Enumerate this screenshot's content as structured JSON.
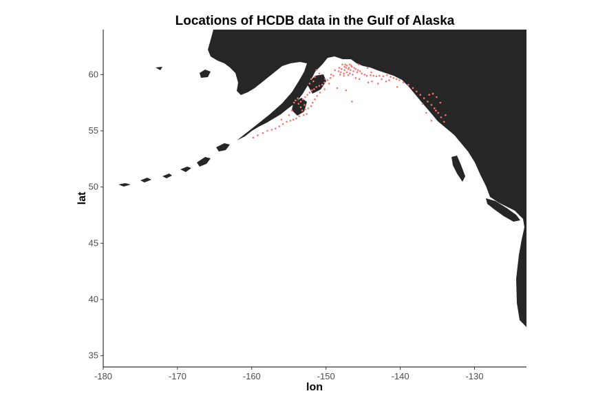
{
  "chart_data": {
    "type": "scatter",
    "title": "Locations of HCDB data in the Gulf of Alaska",
    "xlabel": "lon",
    "ylabel": "lat",
    "xlim": [
      -180,
      -123
    ],
    "ylim": [
      34,
      64
    ],
    "x_ticks": [
      -180,
      -170,
      -160,
      -150,
      -140,
      -130
    ],
    "y_ticks": [
      35,
      40,
      45,
      50,
      55,
      60
    ],
    "x_tick_labels": [
      "-180",
      "-170",
      "-160",
      "-150",
      "-140",
      "-130"
    ],
    "y_tick_labels": [
      "35",
      "40",
      "45",
      "50",
      "55",
      "60"
    ],
    "grid": false,
    "point_color": "#f8766d",
    "land_color": "#262626",
    "points": [
      [
        -147.8,
        60.9
      ],
      [
        -147.5,
        60.7
      ],
      [
        -147.2,
        60.8
      ],
      [
        -146.8,
        60.9
      ],
      [
        -146.5,
        60.7
      ],
      [
        -146.2,
        60.6
      ],
      [
        -147.9,
        60.5
      ],
      [
        -147.5,
        60.4
      ],
      [
        -147.0,
        60.5
      ],
      [
        -146.7,
        60.4
      ],
      [
        -146.3,
        60.3
      ],
      [
        -148.0,
        60.2
      ],
      [
        -147.6,
        60.1
      ],
      [
        -147.2,
        60.2
      ],
      [
        -146.8,
        60.1
      ],
      [
        -148.2,
        60.6
      ],
      [
        -147.4,
        60.9
      ],
      [
        -146.9,
        60.6
      ],
      [
        -146.0,
        60.5
      ],
      [
        -145.7,
        60.4
      ],
      [
        -145.4,
        60.3
      ],
      [
        -145.8,
        60.2
      ],
      [
        -146.4,
        60.0
      ],
      [
        -147.0,
        59.95
      ],
      [
        -147.6,
        59.9
      ],
      [
        -148.1,
        60.0
      ],
      [
        -147.3,
        60.6
      ],
      [
        -146.6,
        60.8
      ],
      [
        -148.3,
        60.3
      ],
      [
        -145.2,
        60.1
      ],
      [
        -144.8,
        60.0
      ],
      [
        -144.5,
        59.9
      ],
      [
        -144.0,
        59.95
      ],
      [
        -143.6,
        59.9
      ],
      [
        -143.2,
        59.85
      ],
      [
        -142.8,
        59.9
      ],
      [
        -142.3,
        59.85
      ],
      [
        -141.8,
        59.95
      ],
      [
        -141.3,
        59.8
      ],
      [
        -140.9,
        59.7
      ],
      [
        -140.5,
        59.6
      ],
      [
        -141.5,
        59.5
      ],
      [
        -142.5,
        59.6
      ],
      [
        -143.8,
        59.4
      ],
      [
        -145.5,
        59.6
      ],
      [
        -146.0,
        59.7
      ],
      [
        -144.3,
        59.3
      ],
      [
        -149.0,
        59.9
      ],
      [
        -149.4,
        59.7
      ],
      [
        -149.8,
        59.5
      ],
      [
        -150.2,
        59.3
      ],
      [
        -150.5,
        59.1
      ],
      [
        -150.9,
        59.0
      ],
      [
        -151.3,
        58.9
      ],
      [
        -151.6,
        58.7
      ],
      [
        -151.9,
        58.6
      ],
      [
        -152.2,
        58.4
      ],
      [
        -152.5,
        58.2
      ],
      [
        -152.8,
        58.0
      ],
      [
        -153.1,
        57.8
      ],
      [
        -153.4,
        57.6
      ],
      [
        -153.7,
        57.4
      ],
      [
        -151.8,
        57.5
      ],
      [
        -151.5,
        57.8
      ],
      [
        -151.2,
        58.1
      ],
      [
        -150.8,
        58.4
      ],
      [
        -152.0,
        57.2
      ],
      [
        -152.4,
        57.0
      ],
      [
        -152.8,
        56.9
      ],
      [
        -153.2,
        56.8
      ],
      [
        -151.7,
        59.4
      ],
      [
        -152.0,
        59.6
      ],
      [
        -151.5,
        59.8
      ],
      [
        -150.9,
        60.1
      ],
      [
        -151.3,
        60.4
      ],
      [
        -152.2,
        59.2
      ],
      [
        -153.6,
        56.3
      ],
      [
        -154.0,
        56.1
      ],
      [
        -154.4,
        56.0
      ],
      [
        -154.8,
        55.9
      ],
      [
        -155.3,
        55.8
      ],
      [
        -155.8,
        55.6
      ],
      [
        -156.3,
        55.4
      ],
      [
        -156.8,
        55.2
      ],
      [
        -157.3,
        55.1
      ],
      [
        -157.9,
        55.0
      ],
      [
        -158.5,
        54.8
      ],
      [
        -159.2,
        54.6
      ],
      [
        -159.8,
        54.4
      ],
      [
        -152.6,
        56.5
      ],
      [
        -153.0,
        56.4
      ],
      [
        -153.8,
        57.9
      ],
      [
        -154.1,
        57.7
      ],
      [
        -154.3,
        57.5
      ],
      [
        -150.2,
        58.7
      ],
      [
        -149.6,
        59.2
      ],
      [
        -148.5,
        58.8
      ],
      [
        -144.4,
        60.6
      ],
      [
        -145.6,
        60.9
      ],
      [
        -143.9,
        60.2
      ],
      [
        -148.8,
        60.4
      ],
      [
        -141.9,
        59.4
      ],
      [
        -140.1,
        59.5
      ],
      [
        -139.6,
        59.3
      ],
      [
        -138.9,
        59.1
      ],
      [
        -138.3,
        58.8
      ],
      [
        -137.8,
        58.5
      ],
      [
        -137.3,
        58.2
      ],
      [
        -136.8,
        57.9
      ],
      [
        -136.3,
        57.6
      ],
      [
        -135.8,
        57.3
      ],
      [
        -135.4,
        57.0
      ],
      [
        -134.9,
        56.6
      ],
      [
        -134.5,
        56.2
      ],
      [
        -134.1,
        55.8
      ],
      [
        -135.6,
        58.3
      ],
      [
        -135.1,
        58.0
      ],
      [
        -136.1,
        58.2
      ],
      [
        -134.6,
        57.5
      ],
      [
        -135.2,
        56.8
      ],
      [
        -133.9,
        56.4
      ],
      [
        -135.8,
        55.9
      ],
      [
        -136.5,
        56.6
      ],
      [
        -137.0,
        57.4
      ],
      [
        -146.5,
        57.6
      ],
      [
        -147.3,
        58.6
      ],
      [
        -143.0,
        59.2
      ],
      [
        -140.4,
        58.9
      ],
      [
        -150.1,
        59.6
      ],
      [
        -149.3,
        60.0
      ],
      [
        -152.9,
        57.3
      ],
      [
        -153.4,
        57.1
      ],
      [
        -155.0,
        56.4
      ],
      [
        -156.0,
        56.0
      ],
      [
        -154.6,
        56.8
      ]
    ]
  }
}
